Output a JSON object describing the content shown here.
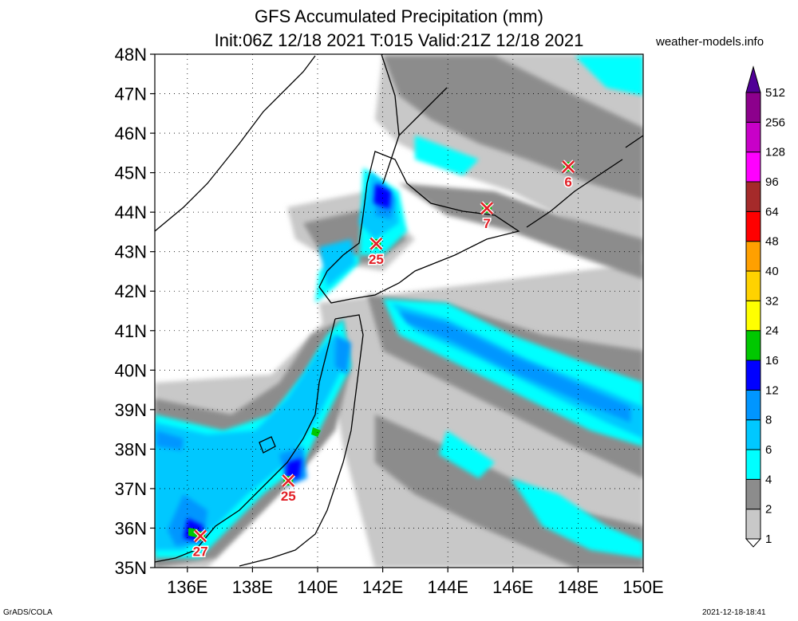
{
  "header": {
    "title_line1": "GFS Accumulated Precipitation (mm)",
    "title_line2": "Init:06Z 12/18 2021 T:015 Valid:21Z 12/18 2021",
    "site": "weather-models.info"
  },
  "footer": {
    "left": "GrADS/COLA",
    "right": "2021-12-18-18:41"
  },
  "chart_data": {
    "type": "heatmap",
    "title": "GFS Accumulated Precipitation (mm)",
    "xlabel": "",
    "ylabel": "",
    "xlim": [
      135,
      150
    ],
    "ylim": [
      35,
      48
    ],
    "x_ticks": [
      "136E",
      "138E",
      "140E",
      "142E",
      "144E",
      "146E",
      "148E",
      "150E"
    ],
    "x_tick_values": [
      136,
      138,
      140,
      142,
      144,
      146,
      148,
      150
    ],
    "y_ticks": [
      "35N",
      "36N",
      "37N",
      "38N",
      "39N",
      "40N",
      "41N",
      "42N",
      "43N",
      "44N",
      "45N",
      "46N",
      "47N",
      "48N"
    ],
    "y_tick_values": [
      35,
      36,
      37,
      38,
      39,
      40,
      41,
      42,
      43,
      44,
      45,
      46,
      47,
      48
    ],
    "grid": true,
    "colorbar": {
      "levels": [
        "1",
        "2",
        "4",
        "6",
        "8",
        "12",
        "16",
        "24",
        "32",
        "40",
        "48",
        "64",
        "96",
        "128",
        "256",
        "512"
      ],
      "colors": [
        "#ffffff",
        "#c8c8c8",
        "#8c8c8c",
        "#00ffff",
        "#00c8ff",
        "#0096ff",
        "#0000ff",
        "#00c800",
        "#ffff00",
        "#ffd200",
        "#ffa000",
        "#ff0000",
        "#a52a2a",
        "#ff00ff",
        "#c800c8",
        "#8c008c",
        "#500096"
      ]
    },
    "max_markers": [
      {
        "lon": 141.8,
        "lat": 43.2,
        "value": "25"
      },
      {
        "lon": 145.2,
        "lat": 44.1,
        "value": "7"
      },
      {
        "lon": 147.7,
        "lat": 45.15,
        "value": "6"
      },
      {
        "lon": 139.1,
        "lat": 37.2,
        "value": "25"
      },
      {
        "lon": 136.4,
        "lat": 35.8,
        "value": "27"
      }
    ]
  }
}
